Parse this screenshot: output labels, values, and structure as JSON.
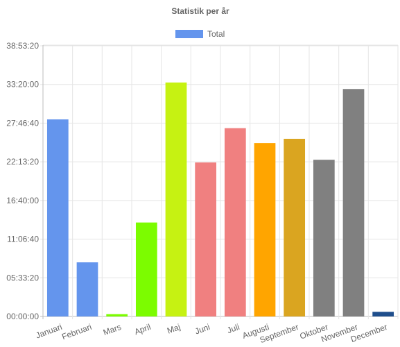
{
  "chart_data": {
    "type": "bar",
    "title": "Statistik per år",
    "legend": {
      "label": "Total",
      "color": "#6495ed",
      "placement": "top"
    },
    "categories": [
      "Januari",
      "Februari",
      "Mars",
      "April",
      "Maj",
      "Juni",
      "Juli",
      "Augusti",
      "September",
      "Oktober",
      "November",
      "December"
    ],
    "series": [
      {
        "name": "Total",
        "values_seconds": [
          101930,
          28000,
          1200,
          48600,
          121020,
          79650,
          97400,
          89700,
          91900,
          81050,
          117660,
          2400
        ],
        "colors": [
          "#6495ed",
          "#6495ed",
          "#7cfc00",
          "#7cfc00",
          "#c6f212",
          "#f08080",
          "#f08080",
          "#ffa500",
          "#daa520",
          "#808080",
          "#808080",
          "#1f4e8c"
        ]
      }
    ],
    "y_ticks": [
      "00:00:00",
      "05:33:20",
      "11:06:40",
      "16:40:00",
      "22:13:20",
      "27:46:40",
      "33:20:00",
      "38:53:20"
    ],
    "ylim_seconds": [
      0,
      140000
    ],
    "grid": true
  }
}
